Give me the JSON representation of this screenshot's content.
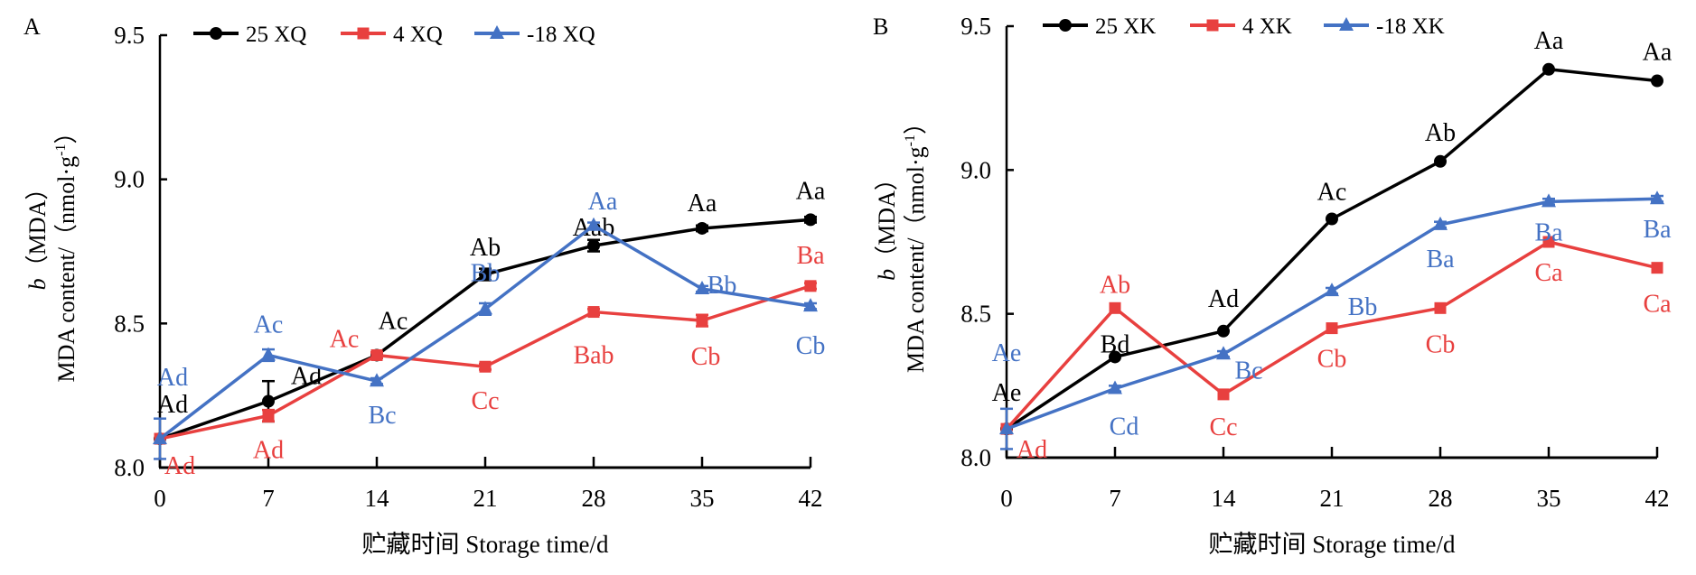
{
  "chart_data": [
    {
      "panel": "A",
      "type": "line",
      "xlabel": "贮藏时间 Storage time/d",
      "ylabel_line1": "b（MDA）",
      "ylabel_line2": "MDA content/（nmol·g⁻¹）",
      "ylabel_italic": "b",
      "ylabel_line1_rest": "（MDA）",
      "ylabel_line2_main": "MDA content/（nmol·g",
      "ylabel_line2_sup": "-1",
      "ylabel_line2_end": "）",
      "x": [
        0,
        7,
        14,
        21,
        28,
        35,
        42
      ],
      "xticks": [
        "0",
        "7",
        "14",
        "21",
        "28",
        "35",
        "42"
      ],
      "ylim": [
        8.0,
        9.5
      ],
      "yticks": [
        "8.0",
        "8.5",
        "9.0",
        "9.5"
      ],
      "grid": false,
      "legend_position": "top",
      "series": [
        {
          "name": "25 XQ",
          "color": "#000000",
          "marker": "circle",
          "values": [
            8.1,
            8.23,
            8.39,
            8.67,
            8.77,
            8.83,
            8.86
          ],
          "errors": [
            0.0,
            0.07,
            0.01,
            0.02,
            0.02,
            0.01,
            0.01
          ],
          "labels": [
            "Ad",
            "Ad",
            "Ac",
            "Ab",
            "Aab",
            "Aa",
            "Aa"
          ]
        },
        {
          "name": "4 XQ",
          "color": "#e8403f",
          "marker": "square",
          "values": [
            8.1,
            8.18,
            8.39,
            8.35,
            8.54,
            8.51,
            8.63
          ],
          "errors": [
            0.0,
            0.02,
            0.01,
            0.01,
            0.01,
            0.02,
            0.01
          ],
          "labels": [
            "Ad",
            "Ad",
            "Ac",
            "Cc",
            "Bab",
            "Cb",
            "Ba"
          ]
        },
        {
          "name": "-18 XQ",
          "color": "#4472c4",
          "marker": "triangle",
          "values": [
            8.1,
            8.39,
            8.3,
            8.55,
            8.84,
            8.62,
            8.56
          ],
          "errors": [
            0.07,
            0.02,
            0.01,
            0.02,
            0.01,
            0.01,
            0.01
          ],
          "labels": [
            "Ad",
            "Ac",
            "Bc",
            "Bb",
            "Aa",
            "Bb",
            "Cb"
          ]
        }
      ]
    },
    {
      "panel": "B",
      "type": "line",
      "xlabel": "贮藏时间 Storage time/d",
      "ylabel_line1": "b（MDA）",
      "ylabel_line2": "MDA content/（nmol·g⁻¹）",
      "ylabel_italic": "b",
      "ylabel_line1_rest": "（MDA）",
      "ylabel_line2_main": "MDA content/（nmol·g",
      "ylabel_line2_sup": "-1",
      "ylabel_line2_end": "）",
      "x": [
        0,
        7,
        14,
        21,
        28,
        35,
        42
      ],
      "xticks": [
        "0",
        "7",
        "14",
        "21",
        "28",
        "35",
        "42"
      ],
      "ylim": [
        8.0,
        9.5
      ],
      "yticks": [
        "8.0",
        "8.5",
        "9.0",
        "9.5"
      ],
      "grid": false,
      "legend_position": "top",
      "series": [
        {
          "name": "25 XK",
          "color": "#000000",
          "marker": "circle",
          "values": [
            8.1,
            8.35,
            8.44,
            8.83,
            9.03,
            9.35,
            9.31
          ],
          "errors": [
            0.0,
            0.0,
            0.0,
            0.0,
            0.0,
            0.0,
            0.0
          ],
          "labels": [
            "Ae",
            "Bd",
            "Ad",
            "Ac",
            "Ab",
            "Aa",
            "Aa"
          ]
        },
        {
          "name": "4 XK",
          "color": "#e8403f",
          "marker": "square",
          "values": [
            8.1,
            8.52,
            8.22,
            8.45,
            8.52,
            8.75,
            8.66
          ],
          "errors": [
            0.0,
            0.0,
            0.0,
            0.0,
            0.0,
            0.0,
            0.0
          ],
          "labels": [
            "Ad",
            "Ab",
            "Cc",
            "Cb",
            "Cb",
            "Ca",
            "Ca"
          ]
        },
        {
          "name": "-18 XK",
          "color": "#4472c4",
          "marker": "triangle",
          "values": [
            8.1,
            8.24,
            8.36,
            8.58,
            8.81,
            8.89,
            8.9
          ],
          "errors": [
            0.07,
            0.01,
            0.01,
            0.01,
            0.01,
            0.01,
            0.01
          ],
          "labels": [
            "Ae",
            "Cd",
            "Bc",
            "Bb",
            "Ba",
            "Ba",
            "Ba"
          ]
        }
      ]
    }
  ]
}
